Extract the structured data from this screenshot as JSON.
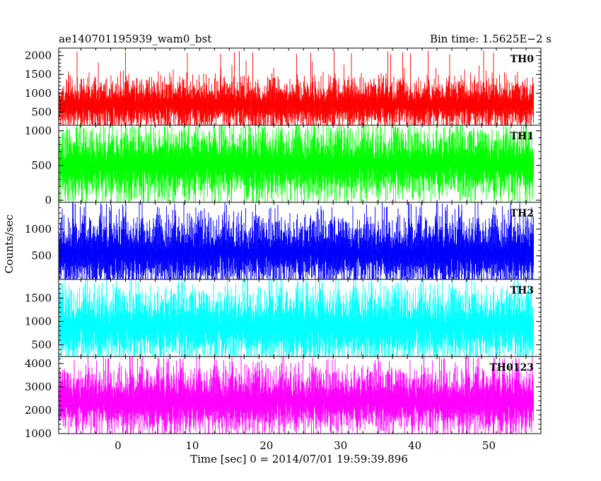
{
  "header": {
    "left": "ae140701195939_wam0_bst",
    "right": "Bin time: 1.5625E−2 s"
  },
  "chart_data": {
    "type": "line",
    "title": "ae140701195939_wam0_bst",
    "bin_time_label": "Bin time: 1.5625E−2 s",
    "xlabel": "Time [sec] 0 = 2014/07/01 19:59:39.896",
    "ylabel": "Counts/sec",
    "xlim": [
      -8,
      57
    ],
    "x_range_data": [
      -8,
      56
    ],
    "x_ticks": [
      0,
      10,
      20,
      30,
      40,
      50
    ],
    "x_tick_labels": [
      "0",
      "10",
      "20",
      "30",
      "40",
      "50"
    ],
    "grid": false,
    "legend": "none",
    "series": [
      {
        "name": "TH0",
        "color": "#ff0000",
        "ylim": [
          150,
          2200
        ],
        "y_ticks": [
          500,
          1000,
          1500,
          2000
        ],
        "y_tick_labels": [
          "500",
          "1000",
          "1500",
          "2000"
        ],
        "approx_mean": 700,
        "approx_low": 200,
        "approx_high": 1400,
        "approx_peak": 2150
      },
      {
        "name": "TH1",
        "color": "#00ff00",
        "ylim": [
          -30,
          1080
        ],
        "y_ticks": [
          0,
          500,
          1000
        ],
        "y_tick_labels": [
          "0",
          "500",
          "1000"
        ],
        "approx_mean": 520,
        "approx_low": 80,
        "approx_high": 1000,
        "approx_peak": 1080
      },
      {
        "name": "TH2",
        "color": "#0000ff",
        "ylim": [
          60,
          1500
        ],
        "y_ticks": [
          500,
          1000
        ],
        "y_tick_labels": [
          "500",
          "1000"
        ],
        "approx_mean": 560,
        "approx_low": 120,
        "approx_high": 1300,
        "approx_peak": 1500
      },
      {
        "name": "TH3",
        "color": "#00ffff",
        "ylim": [
          250,
          1900
        ],
        "y_ticks": [
          500,
          1000,
          1500
        ],
        "y_tick_labels": [
          "500",
          "1000",
          "1500"
        ],
        "approx_mean": 900,
        "approx_low": 350,
        "approx_high": 1750,
        "approx_peak": 1900
      },
      {
        "name": "TH0123",
        "color": "#ff00ff",
        "ylim": [
          1000,
          4300
        ],
        "y_ticks": [
          1000,
          2000,
          3000,
          4000
        ],
        "y_tick_labels": [
          "1000",
          "2000",
          "3000",
          "4000"
        ],
        "approx_mean": 2400,
        "approx_low": 1200,
        "approx_high": 3700,
        "approx_peak": 4300
      }
    ]
  }
}
